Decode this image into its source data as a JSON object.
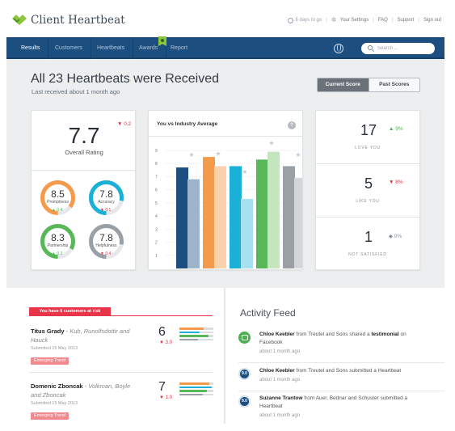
{
  "app": {
    "name": "Client Heartbeat"
  },
  "toplinks": {
    "days_to_go": "6 days to go",
    "settings": "Your Settings",
    "faq": "FAQ",
    "support": "Support",
    "signout": "Sign out"
  },
  "nav": {
    "items": [
      "Results",
      "Customers",
      "Heartbeats",
      "Awards",
      "Report"
    ],
    "active": "Results"
  },
  "search": {
    "placeholder": "Search ..."
  },
  "header": {
    "title": "All 23 Heartbeats were Received",
    "subtitle": "Last received about 1 month ago"
  },
  "scores_toggle": {
    "current": "Current Score",
    "past": "Past Scores"
  },
  "overall": {
    "value": "7.7",
    "delta": "▼ 0.2",
    "label": "Overall Rating"
  },
  "metrics": [
    {
      "value": "8.5",
      "label": "Promptness",
      "delta": "▲ 0.4",
      "trend": "up",
      "fill": 0.85,
      "color": "#f59a4a"
    },
    {
      "value": "7.8",
      "label": "Accuracy",
      "delta": "▼ 0.1",
      "trend": "down",
      "fill": 0.78,
      "color": "#1ab0d8"
    },
    {
      "value": "8.3",
      "label": "Partnership",
      "delta": "▲ 0.3",
      "trend": "up",
      "fill": 0.83,
      "color": "#58b857"
    },
    {
      "value": "7.8",
      "label": "Helpfulness",
      "delta": "▼ 0.4",
      "trend": "down",
      "fill": 0.78,
      "color": "#9aa0a6"
    }
  ],
  "chart_data": {
    "type": "bar",
    "title": "You vs Industry Average",
    "ylim": [
      0,
      9
    ],
    "yticks": [
      "9",
      "8",
      "7",
      "6",
      "5",
      "4",
      "3",
      "2",
      "1"
    ],
    "series": [
      {
        "values": [
          7.7,
          8.5,
          7.8,
          8.3,
          7.8
        ],
        "colors": [
          "#1c4e80",
          "#f59a4a",
          "#1ab0d8",
          "#58b857",
          "#9aa0a6"
        ]
      },
      {
        "values": [
          6.8,
          7.8,
          5.3,
          8.9,
          6.9
        ],
        "colors": [
          "#9db4cc",
          "#fbd2ae",
          "#a6e1f1",
          "#c3e6bd",
          "#d3d6d9"
        ]
      }
    ],
    "stars": [
      8.5,
      8.6,
      7.2,
      9.4,
      8.5
    ],
    "grid": true
  },
  "nps": [
    {
      "value": "17",
      "label": "LOVE YOU",
      "delta": "▲ 9%",
      "trend": "up"
    },
    {
      "value": "5",
      "label": "LIKE YOU",
      "delta": "▼ 8%",
      "trend": "down"
    },
    {
      "value": "1",
      "label": "NOT SATISFIED",
      "delta": "◆ 0%",
      "trend": "flat"
    }
  ],
  "risk": {
    "badge": "You have 6 customers at risk"
  },
  "customers": [
    {
      "name": "Titus Grady",
      "company": "- Kub, Runolfsdottir and Hauck",
      "submitted": "Submitted 15 May 2013",
      "trend": "Emerging Trend",
      "score": "6",
      "delta": "▼ 3.0",
      "bars": [
        {
          "fill": 0.72,
          "color": "#f59a4a"
        },
        {
          "fill": 0.6,
          "color": "#1ab0d8"
        },
        {
          "fill": 0.85,
          "color": "#58b857"
        },
        {
          "fill": 0.55,
          "color": "#9aa0a6"
        }
      ]
    },
    {
      "name": "Domenic Zboncak",
      "company": "- Volkman, Boyle and Zboncak",
      "submitted": "Submitted 15 May 2013",
      "trend": "Emerging Trend",
      "score": "7",
      "delta": "▼ 1.0",
      "bars": [
        {
          "fill": 0.88,
          "color": "#f59a4a"
        },
        {
          "fill": 0.95,
          "color": "#1ab0d8"
        },
        {
          "fill": 0.8,
          "color": "#58b857"
        },
        {
          "fill": 0.7,
          "color": "#9aa0a6"
        }
      ]
    }
  ],
  "feed": {
    "title": "Activity Feed",
    "items": [
      {
        "icon": "comment-icon",
        "actor": "Chloe Keebler",
        "mid": " from Treutel and Sons shared a ",
        "strong": "testimonial",
        "tail": " on Facebook",
        "time": "about 1 month ago"
      },
      {
        "icon": "score-badge-icon",
        "badge": "9.0",
        "actor": "Chloe Keebler",
        "mid": " from Treutel and Sons submitted a Heartbeat",
        "strong": "",
        "tail": "",
        "time": "about 1 month ago"
      },
      {
        "icon": "score-badge-icon",
        "badge": "9.0",
        "actor": "Suzanne Trantow",
        "mid": " from Auer, Bednar and Schuster submitted a Heartbeat",
        "strong": "",
        "tail": "",
        "time": "about 1 month ago"
      }
    ]
  }
}
